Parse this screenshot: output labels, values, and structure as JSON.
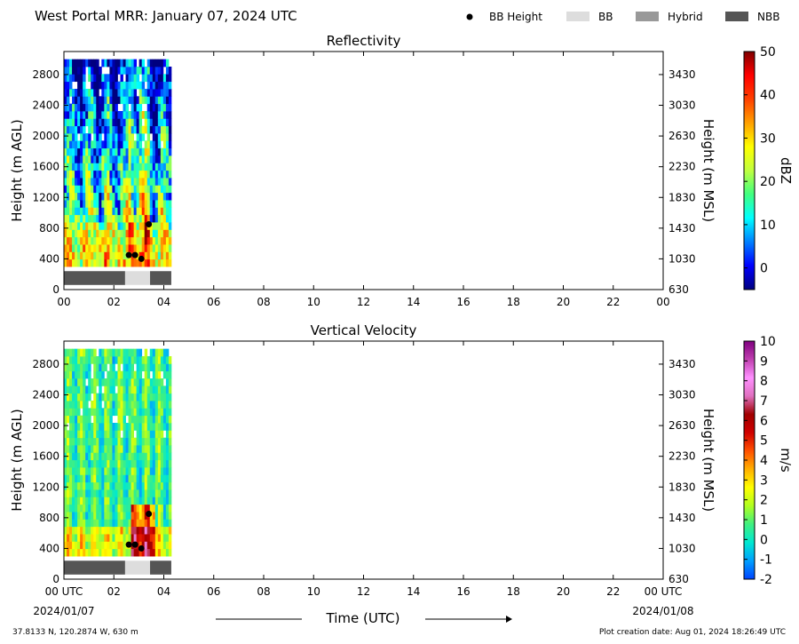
{
  "header": {
    "title": "West Portal MRR:  January 07, 2024 UTC",
    "legend": [
      {
        "label": "BB Height",
        "kind": "dot",
        "color": "#000000"
      },
      {
        "label": "BB",
        "kind": "rect",
        "color": "#dddddd"
      },
      {
        "label": "Hybrid",
        "kind": "rect",
        "color": "#999999"
      },
      {
        "label": "NBB",
        "kind": "rect",
        "color": "#555555"
      }
    ]
  },
  "footer": {
    "coords": "37.8133 N, 120.2874 W, 630 m",
    "created": "Plot creation date: Aug 01, 2024 18:26:49 UTC",
    "xlabel": "Time (UTC)",
    "start_date": "2024/01/07",
    "end_date": "2024/01/08"
  },
  "chart_data": [
    {
      "type": "heatmap",
      "title": "Reflectivity",
      "ylabel": "Height (m AGL)",
      "y2label": "Height (m MSL)",
      "x_ticks": [
        "00",
        "02",
        "04",
        "06",
        "08",
        "10",
        "12",
        "14",
        "16",
        "18",
        "20",
        "22",
        "00"
      ],
      "xlim": [
        0,
        24
      ],
      "ylim": [
        0,
        3100
      ],
      "y_ticks": [
        0,
        400,
        800,
        1200,
        1600,
        2000,
        2400,
        2800
      ],
      "y2_ticks": [
        630,
        1030,
        1430,
        1830,
        2230,
        2630,
        3030,
        3430
      ],
      "data_extent": {
        "x": [
          0,
          4.3
        ],
        "y": [
          300,
          3000
        ]
      },
      "bb_height": [
        {
          "x": 2.6,
          "y": 450
        },
        {
          "x": 2.85,
          "y": 450
        },
        {
          "x": 3.1,
          "y": 400
        },
        {
          "x": 3.4,
          "y": 850
        }
      ],
      "bb_type": [
        {
          "x0": 0,
          "x1": 2.45,
          "type": "NBB"
        },
        {
          "x0": 2.45,
          "x1": 3.45,
          "type": "BB"
        },
        {
          "x0": 3.45,
          "x1": 4.3,
          "type": "NBB"
        }
      ],
      "colorbar": {
        "label": "dBZ",
        "min": -5,
        "max": 50,
        "ticks": [
          0,
          10,
          20,
          30,
          40,
          50
        ],
        "colors": [
          "#00007f",
          "#0000ff",
          "#0080ff",
          "#00ffff",
          "#40ff80",
          "#c0ff40",
          "#ffff00",
          "#ffa000",
          "#ff4000",
          "#ff0000",
          "#7f0000"
        ]
      }
    },
    {
      "type": "heatmap",
      "title": "Vertical Velocity",
      "ylabel": "Height (m AGL)",
      "y2label": "Height (m MSL)",
      "x_ticks": [
        "00 UTC",
        "02",
        "04",
        "06",
        "08",
        "10",
        "12",
        "14",
        "16",
        "18",
        "20",
        "22",
        "00 UTC"
      ],
      "xlim": [
        0,
        24
      ],
      "ylim": [
        0,
        3100
      ],
      "y_ticks": [
        0,
        400,
        800,
        1200,
        1600,
        2000,
        2400,
        2800
      ],
      "y2_ticks": [
        630,
        1030,
        1430,
        1830,
        2230,
        2630,
        3030,
        3430
      ],
      "data_extent": {
        "x": [
          0,
          4.3
        ],
        "y": [
          300,
          3000
        ]
      },
      "bb_height": [
        {
          "x": 2.6,
          "y": 450
        },
        {
          "x": 2.85,
          "y": 450
        },
        {
          "x": 3.1,
          "y": 400
        },
        {
          "x": 3.4,
          "y": 850
        }
      ],
      "bb_type": [
        {
          "x0": 0,
          "x1": 2.45,
          "type": "NBB"
        },
        {
          "x0": 2.45,
          "x1": 3.45,
          "type": "BB"
        },
        {
          "x0": 3.45,
          "x1": 4.3,
          "type": "NBB"
        }
      ],
      "colorbar": {
        "label": "m/s",
        "min": -2,
        "max": 10,
        "ticks": [
          -2,
          -1,
          0,
          1,
          2,
          3,
          4,
          5,
          6,
          7,
          8,
          9,
          10
        ],
        "colors": [
          "#0044ff",
          "#00a0ff",
          "#00e8d0",
          "#40f080",
          "#b0ff20",
          "#ffff00",
          "#ffb000",
          "#ff5000",
          "#d00000",
          "#a00000",
          "#e070c0",
          "#ff90ff",
          "#c040b0",
          "#800080"
        ]
      }
    }
  ]
}
